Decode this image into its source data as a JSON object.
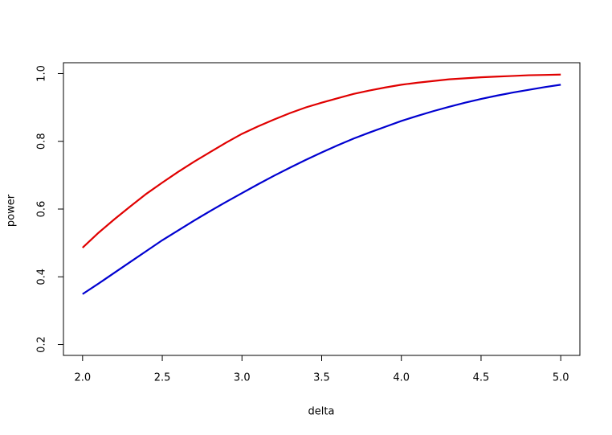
{
  "chart_data": {
    "type": "line",
    "x_label": "delta",
    "y_label": "power",
    "x": [
      2.0,
      2.1,
      2.2,
      2.3,
      2.4,
      2.5,
      2.6,
      2.7,
      2.8,
      2.9,
      3.0,
      3.1,
      3.2,
      3.3,
      3.4,
      3.5,
      3.6,
      3.7,
      3.8,
      3.9,
      4.0,
      4.1,
      4.2,
      4.3,
      4.4,
      4.5,
      4.6,
      4.7,
      4.8,
      4.9,
      5.0
    ],
    "series": [
      {
        "color": "#e00000",
        "values": [
          0.486,
          0.53,
          0.57,
          0.608,
          0.645,
          0.678,
          0.71,
          0.74,
          0.768,
          0.796,
          0.822,
          0.844,
          0.864,
          0.883,
          0.9,
          0.914,
          0.927,
          0.94,
          0.95,
          0.959,
          0.967,
          0.973,
          0.978,
          0.983,
          0.986,
          0.989,
          0.991,
          0.993,
          0.995,
          0.996,
          0.997
        ]
      },
      {
        "color": "#0000d0",
        "values": [
          0.349,
          0.38,
          0.412,
          0.444,
          0.476,
          0.508,
          0.537,
          0.566,
          0.594,
          0.621,
          0.647,
          0.673,
          0.698,
          0.722,
          0.745,
          0.767,
          0.788,
          0.808,
          0.826,
          0.843,
          0.86,
          0.875,
          0.889,
          0.902,
          0.914,
          0.925,
          0.935,
          0.944,
          0.952,
          0.96,
          0.967
        ]
      }
    ],
    "xlim": [
      1.88,
      5.12
    ],
    "ylim": [
      0.168,
      1.032
    ],
    "xticks": [
      {
        "value": 2,
        "label": "2.0"
      },
      2.5,
      {
        "value": 3,
        "label": "3.0"
      },
      3.5,
      {
        "value": 4,
        "label": "4.0"
      },
      4.5,
      {
        "value": 5,
        "label": "5.0"
      }
    ],
    "yticks": [
      0.2,
      0.4,
      0.6,
      0.8,
      {
        "value": 1,
        "label": "1.0"
      }
    ],
    "grid": false
  }
}
